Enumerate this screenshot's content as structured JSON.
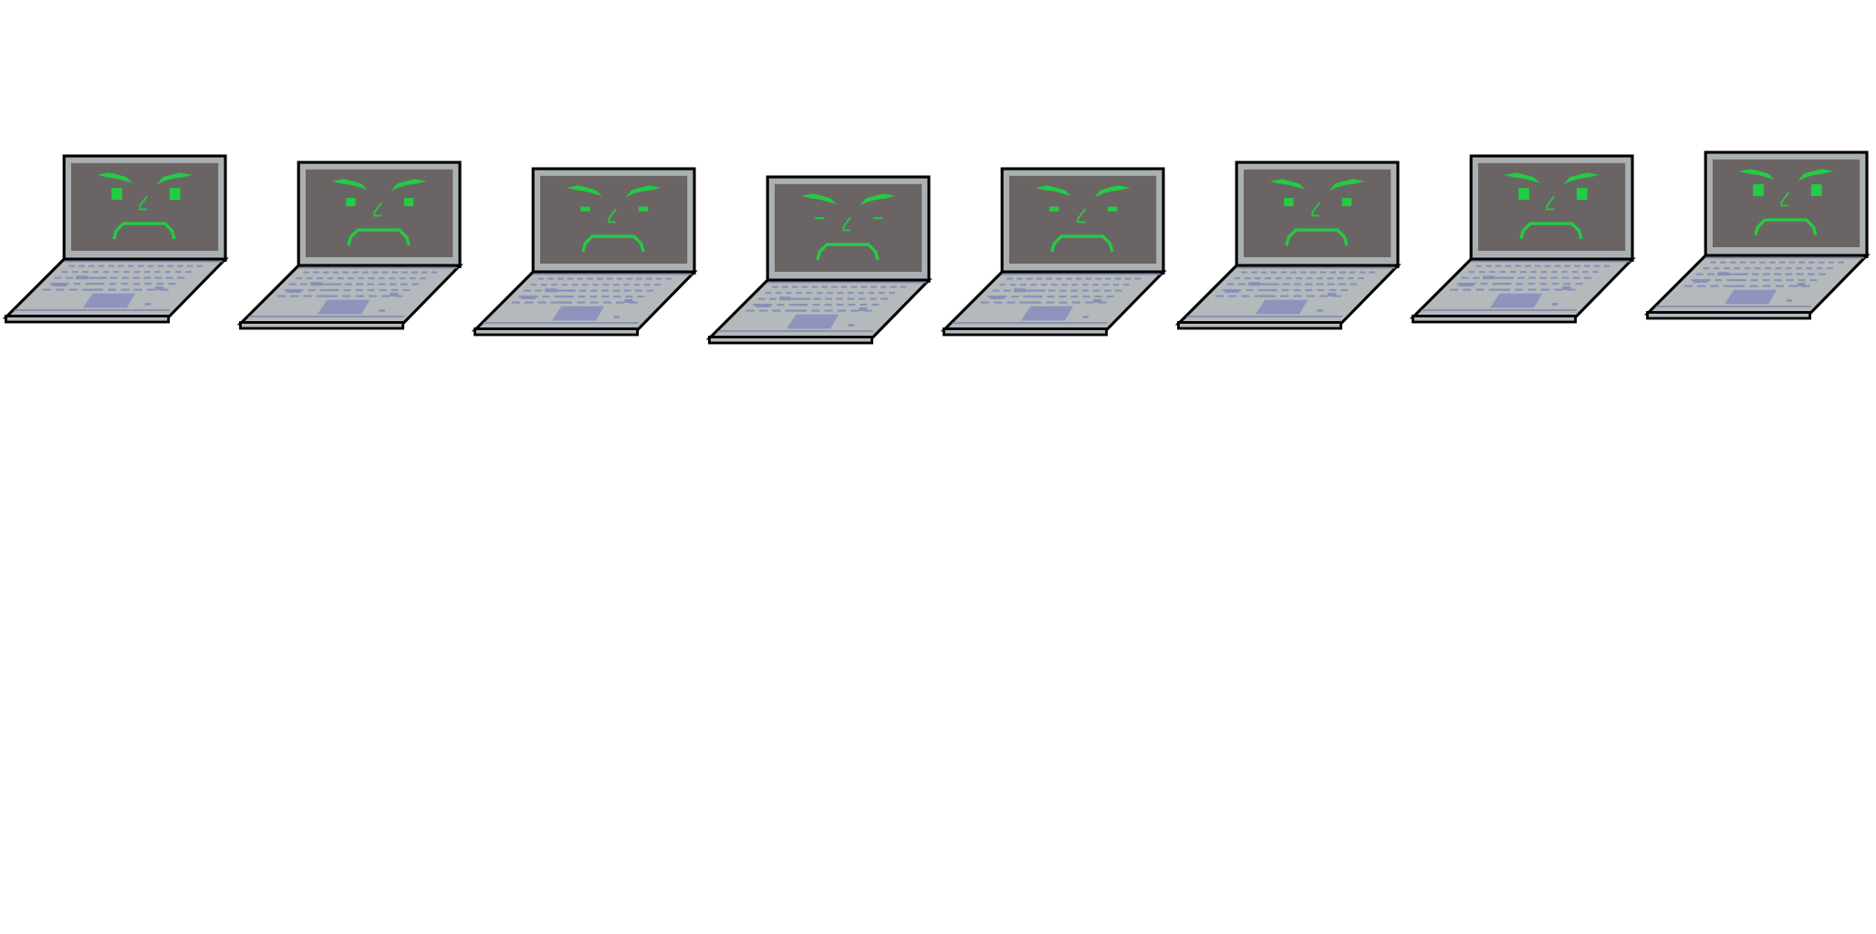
{
  "sprite_sheet": {
    "background_color": "#ffffff",
    "colors": {
      "outline": "#000000",
      "bezel": "#aab0b3",
      "screen": "#6b6464",
      "face": "#22cc44",
      "base": "#b4b9bc",
      "keys": "#8990b8",
      "trackpad": "#8f94bc",
      "base_edge": "#7f86ac"
    },
    "frames": [
      {
        "name": "frame-1",
        "expression": "angry",
        "eyes": "open-wide",
        "icon": "angry-laptop-icon"
      },
      {
        "name": "frame-2",
        "expression": "angry",
        "eyes": "open",
        "icon": "angry-laptop-icon"
      },
      {
        "name": "frame-3",
        "expression": "angry",
        "eyes": "half-closed",
        "icon": "angry-laptop-icon"
      },
      {
        "name": "frame-4",
        "expression": "angry",
        "eyes": "closed",
        "icon": "angry-laptop-icon"
      },
      {
        "name": "frame-5",
        "expression": "angry",
        "eyes": "half-closed",
        "icon": "angry-laptop-icon"
      },
      {
        "name": "frame-6",
        "expression": "angry",
        "eyes": "open",
        "icon": "angry-laptop-icon"
      },
      {
        "name": "frame-7",
        "expression": "angry",
        "eyes": "open-wide",
        "icon": "angry-laptop-icon"
      },
      {
        "name": "frame-8",
        "expression": "angry",
        "eyes": "open-wide",
        "icon": "angry-laptop-icon"
      }
    ]
  }
}
